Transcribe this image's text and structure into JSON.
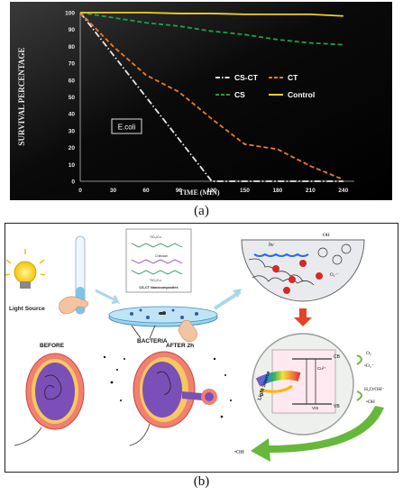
{
  "chart_data": {
    "type": "line",
    "title": "",
    "xlabel": "TIME (MIN)",
    "ylabel": "SURVIVAL PERCENTAGE",
    "xlim": [
      0,
      250
    ],
    "ylim": [
      0,
      100
    ],
    "xticks": [
      0,
      30,
      60,
      90,
      120,
      150,
      180,
      210,
      240
    ],
    "yticks": [
      0,
      10,
      20,
      30,
      40,
      50,
      60,
      70,
      80,
      90,
      100
    ],
    "annotation": "E.coli",
    "legend": "center-right",
    "grid": false,
    "background": "#000000",
    "series": [
      {
        "name": "CS-CT",
        "color": "#e8e8e8",
        "style": "dash-dot",
        "x": [
          0,
          30,
          60,
          90,
          120,
          150,
          180,
          210,
          240
        ],
        "y": [
          100,
          75,
          50,
          25,
          0,
          0,
          0,
          0,
          0
        ]
      },
      {
        "name": "CT",
        "color": "#f07a28",
        "style": "dash",
        "x": [
          0,
          30,
          60,
          90,
          120,
          150,
          180,
          210,
          240
        ],
        "y": [
          100,
          80,
          63,
          53,
          37,
          22,
          19,
          9,
          1
        ]
      },
      {
        "name": "CS",
        "color": "#1ea04a",
        "style": "dash",
        "x": [
          0,
          30,
          60,
          90,
          120,
          150,
          180,
          210,
          240
        ],
        "y": [
          100,
          97,
          94,
          92,
          89,
          87,
          84,
          82,
          81
        ]
      },
      {
        "name": "Control",
        "color": "#f0d020",
        "style": "solid",
        "x": [
          0,
          30,
          60,
          90,
          120,
          150,
          180,
          210,
          240
        ],
        "y": [
          100,
          100,
          100,
          99.5,
          99.5,
          99,
          99,
          99,
          98
        ]
      }
    ]
  },
  "captions": {
    "a": "(a)",
    "b": "(b)"
  },
  "diagram": {
    "light_source_label": "Light Source",
    "bacteria_label": "BACTERIA",
    "before_label": "BEFORE",
    "after_label": "AFTER 2h",
    "inset_label": "CS-CT Nanocomposites",
    "chitosan_label": "Chitosan",
    "tio2_top": "TiO₂/Cu",
    "tio2_bottom": "TiO₂/Cu",
    "hv_label": "hv",
    "oh_label": "·OH",
    "o2_radical_label": "O₂·⁻",
    "cb_label": "CB",
    "vb_label": "VB",
    "cu_label": "Cu²⁺",
    "vis_label": "VIS",
    "o2_label": "O₂",
    "o2_minus_label": "•O₂⁻",
    "h2o_label": "H₂O/OH⁻",
    "oh_radical_label": "•OH",
    "oh_bottom_label": "•OH",
    "ring_light_label": "Light Source"
  },
  "colors": {
    "arrow_blue": "#a8d8ea",
    "arrow_red": "#e0442a",
    "arrow_green": "#66b83a"
  }
}
